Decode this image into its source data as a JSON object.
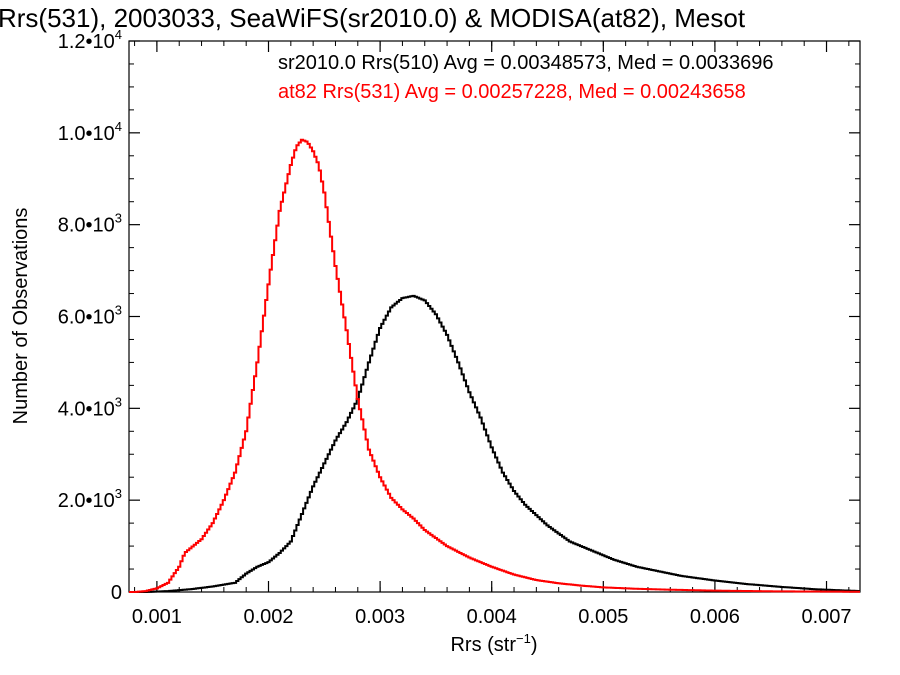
{
  "chart_data": {
    "type": "line",
    "title": "Rrs(531), 2003033, SeaWiFS(sr2010.0) & MODISA(at82), Mesot",
    "xlabel": "Rrs (str",
    "xlabel_sup": "−1",
    "xlabel_close": ")",
    "ylabel": "Number of Observations",
    "xlim": [
      0.00075,
      0.0073
    ],
    "ylim": [
      0,
      12000
    ],
    "x_ticks": [
      {
        "value": 0.001,
        "label": "0.001"
      },
      {
        "value": 0.002,
        "label": "0.002"
      },
      {
        "value": 0.003,
        "label": "0.003"
      },
      {
        "value": 0.004,
        "label": "0.004"
      },
      {
        "value": 0.005,
        "label": "0.005"
      },
      {
        "value": 0.006,
        "label": "0.006"
      },
      {
        "value": 0.007,
        "label": "0.007"
      }
    ],
    "y_ticks": [
      {
        "value": 0,
        "mant": "0",
        "exp": ""
      },
      {
        "value": 2000,
        "mant": "2.0•10",
        "exp": "3"
      },
      {
        "value": 4000,
        "mant": "4.0•10",
        "exp": "3"
      },
      {
        "value": 6000,
        "mant": "6.0•10",
        "exp": "3"
      },
      {
        "value": 8000,
        "mant": "8.0•10",
        "exp": "3"
      },
      {
        "value": 10000,
        "mant": "1.0•10",
        "exp": "4"
      },
      {
        "value": 12000,
        "mant": "1.2•10",
        "exp": "4"
      }
    ],
    "grid": false,
    "legend_position": "top-right",
    "series": [
      {
        "name": "sr2010.0 Rrs(510) Avg = 0.00348573, Med = 0.0033696",
        "color": "#000000",
        "x": [
          0.0009,
          0.0011,
          0.0013,
          0.0015,
          0.0017,
          0.0018,
          0.0019,
          0.002,
          0.0021,
          0.0022,
          0.0023,
          0.0024,
          0.0025,
          0.0026,
          0.0027,
          0.0028,
          0.0029,
          0.003,
          0.0031,
          0.0032,
          0.0033,
          0.0034,
          0.0035,
          0.0036,
          0.0037,
          0.0038,
          0.0039,
          0.004,
          0.0041,
          0.0042,
          0.0043,
          0.0045,
          0.0047,
          0.0049,
          0.005,
          0.0051,
          0.0053,
          0.0055,
          0.0057,
          0.006,
          0.0063,
          0.0066,
          0.0069,
          0.0073
        ],
        "y": [
          0,
          20,
          60,
          120,
          200,
          400,
          550,
          650,
          850,
          1100,
          1700,
          2300,
          2800,
          3300,
          3700,
          4200,
          5000,
          5750,
          6200,
          6400,
          6450,
          6350,
          6050,
          5600,
          5000,
          4350,
          3800,
          3150,
          2600,
          2200,
          1900,
          1450,
          1100,
          900,
          800,
          700,
          550,
          450,
          350,
          250,
          170,
          110,
          60,
          20
        ]
      },
      {
        "name": "at82 Rrs(531) Avg = 0.00257228, Med = 0.00243658",
        "color": "#ff0000",
        "x": [
          0.0008,
          0.0009,
          0.001,
          0.0011,
          0.0012,
          0.00125,
          0.0013,
          0.0014,
          0.0015,
          0.0016,
          0.0017,
          0.0018,
          0.0019,
          0.002,
          0.0021,
          0.0022,
          0.00225,
          0.0023,
          0.00235,
          0.0024,
          0.00245,
          0.0025,
          0.0026,
          0.0027,
          0.0028,
          0.0029,
          0.003,
          0.0031,
          0.0032,
          0.0033,
          0.0034,
          0.0036,
          0.0038,
          0.004,
          0.0042,
          0.0044,
          0.0046,
          0.0048,
          0.005,
          0.0053,
          0.0056,
          0.006,
          0.0065,
          0.0073
        ],
        "y": [
          0,
          20,
          80,
          200,
          550,
          850,
          950,
          1150,
          1500,
          2000,
          2600,
          3500,
          5000,
          6700,
          8300,
          9300,
          9700,
          9850,
          9800,
          9600,
          9300,
          8700,
          7100,
          5700,
          4200,
          3100,
          2500,
          2050,
          1800,
          1600,
          1350,
          1000,
          750,
          550,
          380,
          260,
          190,
          140,
          100,
          70,
          50,
          30,
          15,
          5
        ]
      }
    ]
  }
}
